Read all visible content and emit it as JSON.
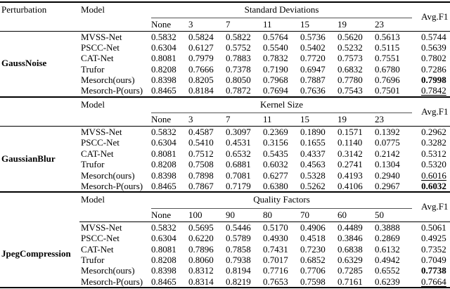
{
  "table": {
    "headers": {
      "perturbation": "Perturbation",
      "model": "Model",
      "avg": "Avg.F1"
    },
    "sections": [
      {
        "id": "gauss-noise",
        "perturbation": "GaussNoise",
        "span_label": "Standard Deviations",
        "levels": [
          "None",
          "3",
          "7",
          "11",
          "15",
          "19",
          "23"
        ],
        "rows": [
          {
            "model": "MVSS-Net",
            "values": [
              "0.5832",
              "0.5824",
              "0.5822",
              "0.5764",
              "0.5736",
              "0.5620",
              "0.5613"
            ],
            "avg": "0.5744",
            "avg_style": "normal"
          },
          {
            "model": "PSCC-Net",
            "values": [
              "0.6304",
              "0.6127",
              "0.5752",
              "0.5540",
              "0.5402",
              "0.5232",
              "0.5115"
            ],
            "avg": "0.5639",
            "avg_style": "normal"
          },
          {
            "model": "CAT-Net",
            "values": [
              "0.8081",
              "0.7979",
              "0.7883",
              "0.7832",
              "0.7720",
              "0.7573",
              "0.7551"
            ],
            "avg": "0.7802",
            "avg_style": "normal"
          },
          {
            "model": "Trufor",
            "values": [
              "0.8208",
              "0.7666",
              "0.7378",
              "0.7190",
              "0.6947",
              "0.6832",
              "0.6780"
            ],
            "avg": "0.7286",
            "avg_style": "normal"
          },
          {
            "model": "Mesorch(ours)",
            "values": [
              "0.8398",
              "0.8205",
              "0.8050",
              "0.7968",
              "0.7887",
              "0.7780",
              "0.7696"
            ],
            "avg": "0.7998",
            "avg_style": "bold"
          },
          {
            "model": "Mesorch-P(ours)",
            "values": [
              "0.8465",
              "0.8184",
              "0.7872",
              "0.7694",
              "0.7636",
              "0.7543",
              "0.7501"
            ],
            "avg": "0.7842",
            "avg_style": "underline"
          }
        ]
      },
      {
        "id": "gaussian-blur",
        "perturbation": "GaussianBlur",
        "span_label": "Kernel Size",
        "levels": [
          "None",
          "3",
          "7",
          "11",
          "15",
          "19",
          "23"
        ],
        "rows": [
          {
            "model": "MVSS-Net",
            "values": [
              "0.5832",
              "0.4587",
              "0.3097",
              "0.2369",
              "0.1890",
              "0.1571",
              "0.1392"
            ],
            "avg": "0.2962",
            "avg_style": "normal"
          },
          {
            "model": "PSCC-Net",
            "values": [
              "0.6304",
              "0.5410",
              "0.4531",
              "0.3156",
              "0.1655",
              "0.1140",
              "0.0775"
            ],
            "avg": "0.3282",
            "avg_style": "normal"
          },
          {
            "model": "CAT-Net",
            "values": [
              "0.8081",
              "0.7512",
              "0.6532",
              "0.5435",
              "0.4337",
              "0.3142",
              "0.2142"
            ],
            "avg": "0.5312",
            "avg_style": "normal"
          },
          {
            "model": "Trufor",
            "values": [
              "0.8208",
              "0.7508",
              "0.6881",
              "0.6032",
              "0.4563",
              "0.2741",
              "0.1304"
            ],
            "avg": "0.5320",
            "avg_style": "normal"
          },
          {
            "model": "Mesorch(ours)",
            "values": [
              "0.8398",
              "0.7898",
              "0.7081",
              "0.6277",
              "0.5328",
              "0.4193",
              "0.2940"
            ],
            "avg": "0.6016",
            "avg_style": "underline"
          },
          {
            "model": "Mesorch-P(ours)",
            "values": [
              "0.8465",
              "0.7867",
              "0.7179",
              "0.6380",
              "0.5262",
              "0.4106",
              "0.2967"
            ],
            "avg": "0.6032",
            "avg_style": "bold"
          }
        ]
      },
      {
        "id": "jpeg-compression",
        "perturbation": "JpegCompression",
        "span_label": "Quality Factors",
        "levels": [
          "None",
          "100",
          "90",
          "80",
          "70",
          "60",
          "50"
        ],
        "rows": [
          {
            "model": "MVSS-Net",
            "values": [
              "0.5832",
              "0.5695",
              "0.5446",
              "0.5170",
              "0.4906",
              "0.4489",
              "0.3888"
            ],
            "avg": "0.5061",
            "avg_style": "normal"
          },
          {
            "model": "PSCC-Net",
            "values": [
              "0.6304",
              "0.6220",
              "0.5789",
              "0.4930",
              "0.4518",
              "0.3846",
              "0.2869"
            ],
            "avg": "0.4925",
            "avg_style": "normal"
          },
          {
            "model": "CAT-Net",
            "values": [
              "0.8081",
              "0.7896",
              "0.7858",
              "0.7431",
              "0.7230",
              "0.6838",
              "0.6132"
            ],
            "avg": "0.7352",
            "avg_style": "normal"
          },
          {
            "model": "Trufor",
            "values": [
              "0.8208",
              "0.8060",
              "0.7938",
              "0.7017",
              "0.6852",
              "0.6329",
              "0.4942"
            ],
            "avg": "0.7049",
            "avg_style": "normal"
          },
          {
            "model": "Mesorch(ours)",
            "values": [
              "0.8398",
              "0.8312",
              "0.8194",
              "0.7716",
              "0.7706",
              "0.7285",
              "0.6552"
            ],
            "avg": "0.7738",
            "avg_style": "bold"
          },
          {
            "model": "Mesorch-P(ours)",
            "values": [
              "0.8465",
              "0.8314",
              "0.8219",
              "0.7653",
              "0.7598",
              "0.7161",
              "0.6239"
            ],
            "avg": "0.7664",
            "avg_style": "underline"
          }
        ]
      }
    ]
  }
}
